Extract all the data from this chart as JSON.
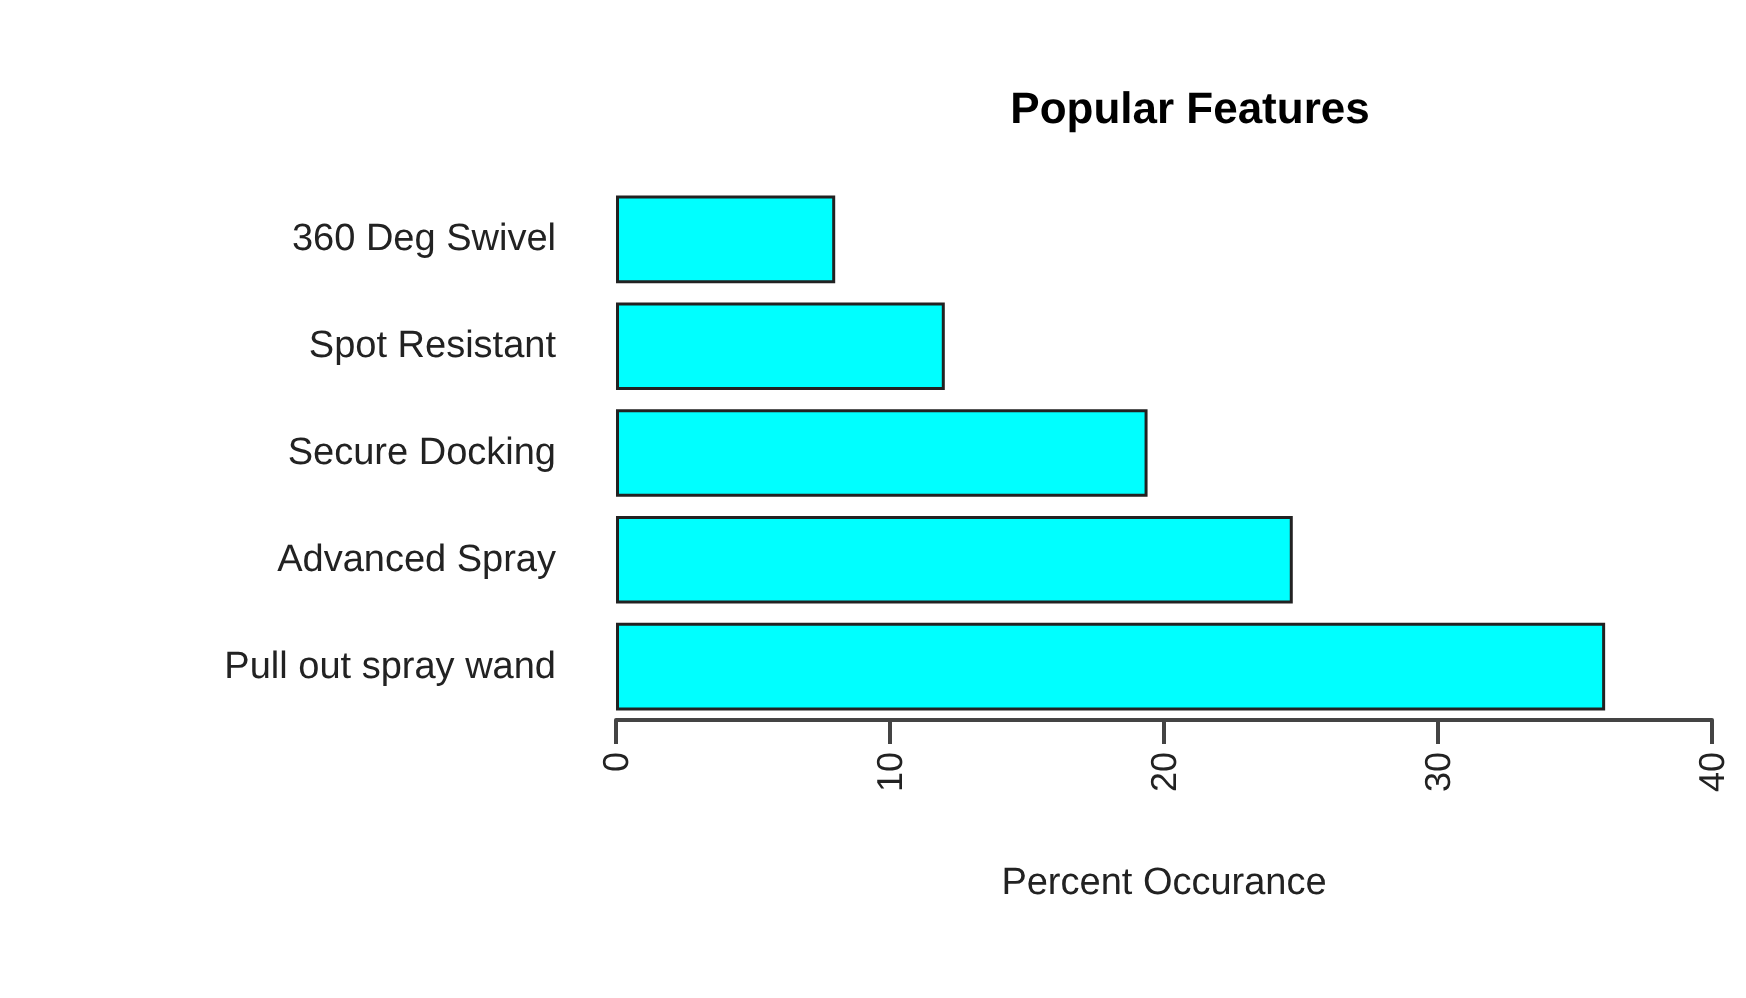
{
  "chart_data": {
    "type": "bar",
    "orientation": "horizontal",
    "title": "Popular Features",
    "xlabel": "Percent Occurance",
    "categories": [
      "360 Deg Swivel",
      "Spot Resistant",
      "Secure Docking",
      "Advanced Spray",
      "Pull out spray wand"
    ],
    "values": [
      8.0,
      12.0,
      19.4,
      24.7,
      36.1
    ],
    "color": "#00ffff",
    "xlim": [
      0,
      40
    ],
    "xticks": [
      0,
      10,
      20,
      30,
      40
    ],
    "grid": false
  }
}
